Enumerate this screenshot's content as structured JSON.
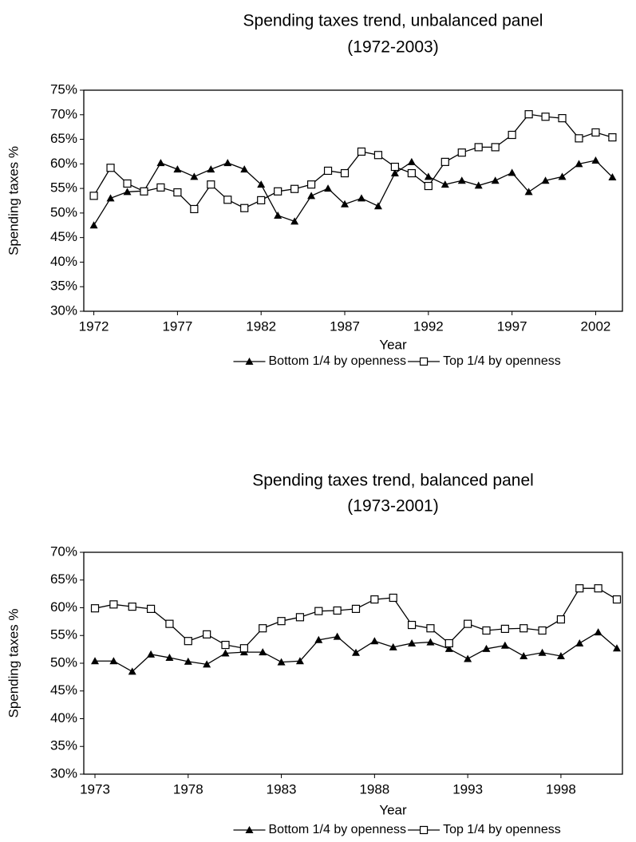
{
  "chart_data": [
    {
      "type": "line",
      "title": "Spending taxes trend, unbalanced panel",
      "subtitle": "(1972-2003)",
      "x_label": "Year",
      "y_label": "Spending taxes %",
      "x": [
        1972,
        1973,
        1974,
        1975,
        1976,
        1977,
        1978,
        1979,
        1980,
        1981,
        1982,
        1983,
        1984,
        1985,
        1986,
        1987,
        1988,
        1989,
        1990,
        1991,
        1992,
        1993,
        1994,
        1995,
        1996,
        1997,
        1998,
        1999,
        2000,
        2001,
        2002,
        2003
      ],
      "series": [
        {
          "name": "Bottom 1/4 by openness",
          "color": "#000000",
          "marker": "triangle",
          "values": [
            47.5,
            53,
            54.3,
            54.5,
            60.2,
            58.9,
            57.4,
            58.9,
            60.2,
            58.9,
            55.8,
            49.5,
            48.3,
            53.5,
            55,
            51.8,
            53,
            51.4,
            58.1,
            60.4,
            57.4,
            55.8,
            56.6,
            55.6,
            56.6,
            58.2,
            54.3,
            56.6,
            57.4,
            60,
            60.7,
            57.3
          ]
        },
        {
          "name": "Top 1/4 by openness",
          "color": "#000000",
          "marker": "square",
          "values": [
            53.5,
            59.2,
            56,
            54.4,
            55.2,
            54.2,
            50.8,
            55.8,
            52.7,
            51,
            52.6,
            54.4,
            54.9,
            55.8,
            58.6,
            58.1,
            62.5,
            61.8,
            59.4,
            58.1,
            55.5,
            60.4,
            62.3,
            63.4,
            63.4,
            65.9,
            70.1,
            69.6,
            69.3,
            65.2,
            66.4,
            65.4
          ]
        }
      ],
      "xlim": [
        1971.4,
        2003.6
      ],
      "xticks": [
        1972,
        1977,
        1982,
        1987,
        1992,
        1997,
        2002
      ],
      "ylim": [
        30,
        75
      ],
      "yticks": [
        {
          "value": 30,
          "label": "30%"
        },
        {
          "value": 35,
          "label": "35%"
        },
        {
          "value": 40,
          "label": "40%"
        },
        {
          "value": 45,
          "label": "45%"
        },
        {
          "value": 50,
          "label": "50%"
        },
        {
          "value": 55,
          "label": "55%"
        },
        {
          "value": 60,
          "label": "60%"
        },
        {
          "value": 65,
          "label": "65%"
        },
        {
          "value": 70,
          "label": "70%"
        },
        {
          "value": 75,
          "label": "75%"
        }
      ],
      "grid": false,
      "legend": "bottom"
    },
    {
      "type": "line",
      "title": "Spending taxes trend, balanced panel",
      "subtitle": "(1973-2001)",
      "x_label": "Year",
      "y_label": "Spending taxes %",
      "x": [
        1973,
        1974,
        1975,
        1976,
        1977,
        1978,
        1979,
        1980,
        1981,
        1982,
        1983,
        1984,
        1985,
        1986,
        1987,
        1988,
        1989,
        1990,
        1991,
        1992,
        1993,
        1994,
        1995,
        1996,
        1997,
        1998,
        1999,
        2000,
        2001
      ],
      "series": [
        {
          "name": "Bottom 1/4 by openness",
          "color": "#000000",
          "marker": "triangle",
          "values": [
            50.4,
            50.4,
            48.5,
            51.6,
            51,
            50.3,
            49.8,
            51.8,
            52,
            52,
            50.2,
            50.4,
            54.2,
            54.8,
            51.9,
            54,
            52.9,
            53.6,
            53.8,
            52.6,
            50.8,
            52.6,
            53.2,
            51.3,
            51.9,
            51.3,
            53.6,
            55.6,
            52.7
          ]
        },
        {
          "name": "Top 1/4 by openness",
          "color": "#000000",
          "marker": "square",
          "values": [
            59.9,
            60.6,
            60.2,
            59.8,
            57.1,
            54,
            55.2,
            53.3,
            52.7,
            56.3,
            57.6,
            58.3,
            59.4,
            59.5,
            59.8,
            61.5,
            61.8,
            56.9,
            56.3,
            53.6,
            57.1,
            55.9,
            56.2,
            56.3,
            55.9,
            57.9,
            63.5,
            63.5,
            61.5
          ]
        }
      ],
      "xlim": [
        1972.4,
        2001.3
      ],
      "xticks": [
        1973,
        1978,
        1983,
        1988,
        1993,
        1998
      ],
      "ylim": [
        30,
        70
      ],
      "yticks": [
        {
          "value": 30,
          "label": "30%"
        },
        {
          "value": 35,
          "label": "35%"
        },
        {
          "value": 40,
          "label": "40%"
        },
        {
          "value": 45,
          "label": "45%"
        },
        {
          "value": 50,
          "label": "50%"
        },
        {
          "value": 55,
          "label": "55%"
        },
        {
          "value": 60,
          "label": "60%"
        },
        {
          "value": 65,
          "label": "65%"
        },
        {
          "value": 70,
          "label": "70%"
        }
      ],
      "grid": false,
      "legend": "bottom"
    }
  ]
}
